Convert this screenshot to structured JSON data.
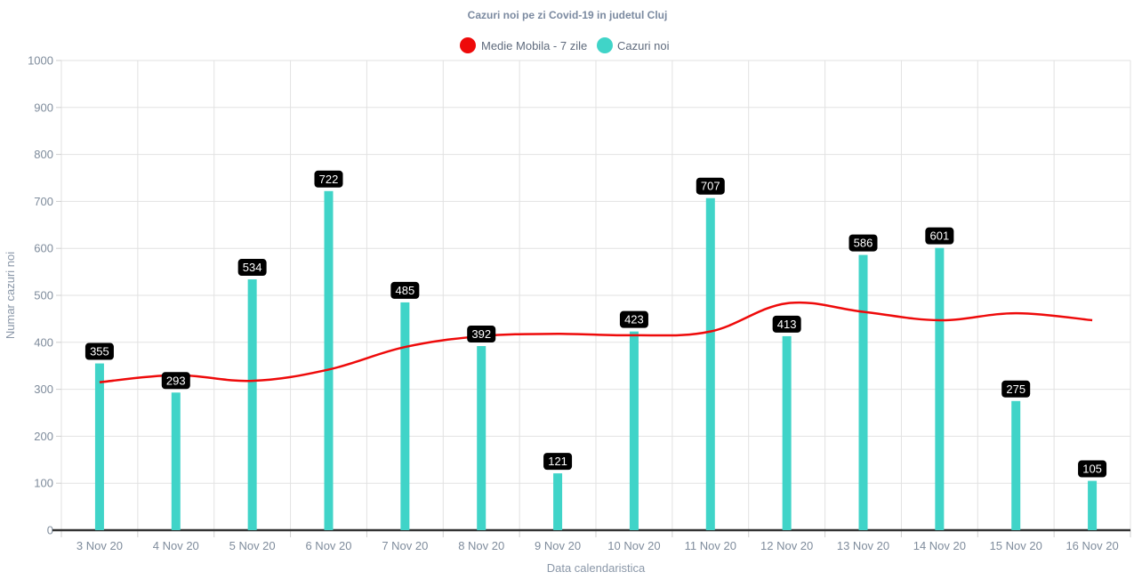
{
  "chart_data": {
    "type": "bar",
    "title": "Cazuri noi pe zi Covid-19 in judetul Cluj",
    "xlabel": "Data calendaristica",
    "ylabel": "Numar cazuri noi",
    "ylim": [
      0,
      1000
    ],
    "yticks": [
      0,
      100,
      200,
      300,
      400,
      500,
      600,
      700,
      800,
      900,
      1000
    ],
    "grid": true,
    "legend_position": "top",
    "categories": [
      "3 Nov 20",
      "4 Nov 20",
      "5 Nov 20",
      "6 Nov 20",
      "7 Nov 20",
      "8 Nov 20",
      "9 Nov 20",
      "10 Nov 20",
      "11 Nov 20",
      "12 Nov 20",
      "13 Nov 20",
      "14 Nov 20",
      "15 Nov 20",
      "16 Nov 20"
    ],
    "series": [
      {
        "name": "Medie Mobila - 7 zile",
        "type": "line",
        "color": "#ee0a0a",
        "values": [
          315,
          330,
          318,
          342,
          390,
          413,
          418,
          415,
          423,
          483,
          465,
          447,
          462,
          447
        ]
      },
      {
        "name": "Cazuri noi",
        "type": "bar",
        "color": "#40d4c8",
        "values": [
          355,
          293,
          534,
          722,
          485,
          392,
          121,
          423,
          707,
          413,
          586,
          601,
          275,
          105
        ]
      }
    ]
  }
}
